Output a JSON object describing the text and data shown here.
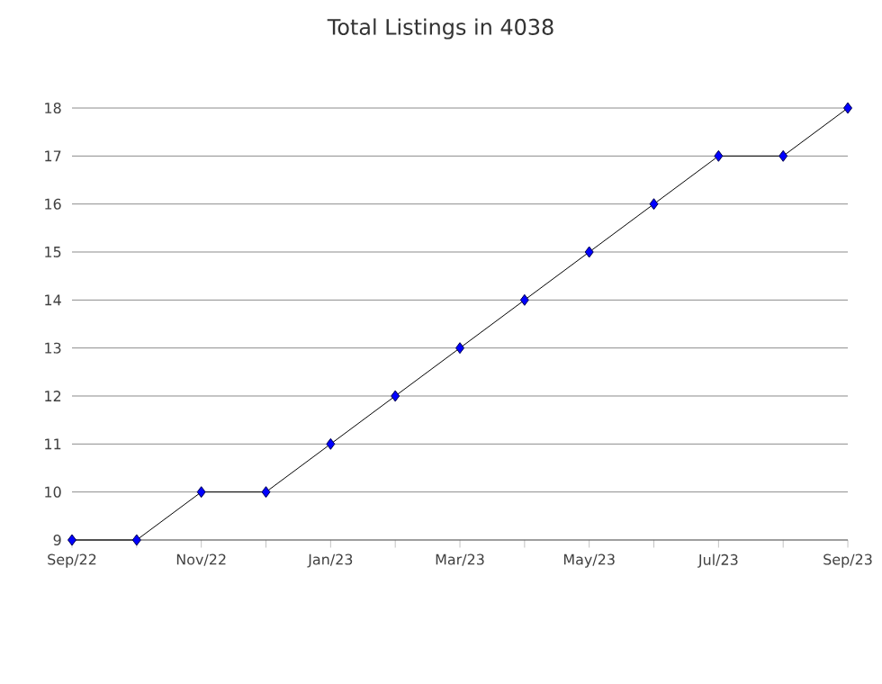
{
  "chart_data": {
    "type": "line",
    "title": "Total Listings in 4038",
    "x": [
      "2022-09",
      "2022-10",
      "2022-11",
      "2022-12",
      "2023-01",
      "2023-02",
      "2023-03",
      "2023-04",
      "2023-05",
      "2023-06",
      "2023-07",
      "2023-08",
      "2023-09"
    ],
    "series": [
      {
        "color": "#0000ff",
        "values": [
          9,
          9,
          10,
          10,
          11,
          12,
          13,
          14,
          15,
          16,
          17,
          17,
          18
        ]
      }
    ],
    "xlim": [
      "2022-09",
      "2023-09"
    ],
    "xticks": [
      {
        "value": "2022-09",
        "label": "Sep/22"
      },
      {
        "value": "2022-10",
        "label": null
      },
      {
        "value": "2022-11",
        "label": "Nov/22"
      },
      {
        "value": "2022-12",
        "label": null
      },
      {
        "value": "2023-01",
        "label": "Jan/23"
      },
      {
        "value": "2023-02",
        "label": null
      },
      {
        "value": "2023-03",
        "label": "Mar/23"
      },
      {
        "value": "2023-04",
        "label": null
      },
      {
        "value": "2023-05",
        "label": "May/23"
      },
      {
        "value": "2023-06",
        "label": null
      },
      {
        "value": "2023-07",
        "label": "Jul/23"
      },
      {
        "value": "2023-08",
        "label": null
      },
      {
        "value": "2023-09",
        "label": "Sep/23"
      }
    ],
    "ylim": [
      9,
      18
    ],
    "yticks": [
      9,
      10,
      11,
      12,
      13,
      14,
      15,
      16,
      17,
      18
    ],
    "grid": "y",
    "marker": "diamond",
    "line_style": "solid"
  }
}
